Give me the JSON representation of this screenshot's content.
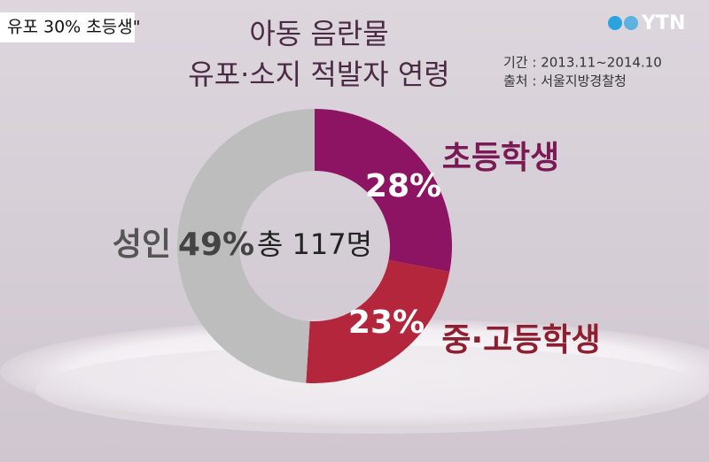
{
  "ticker": "유포 30% 초등생\"",
  "logo": "YTN",
  "chart_data": {
    "type": "donut",
    "title": "아동 음란물",
    "subtitle": "유포·소지 적발자 연령",
    "source": [
      "기간 : 2013.11~2014.10",
      "출처 : 서울지방경찰청"
    ],
    "center_label": "총 117명",
    "categories": [
      "초등학생",
      "중·고등학생",
      "성인"
    ],
    "values": [
      28,
      23,
      49
    ],
    "value_labels": [
      "28%",
      "23%",
      "49%"
    ],
    "colors": [
      "#8c1462",
      "#b3263c",
      "#bdbdbd"
    ]
  }
}
